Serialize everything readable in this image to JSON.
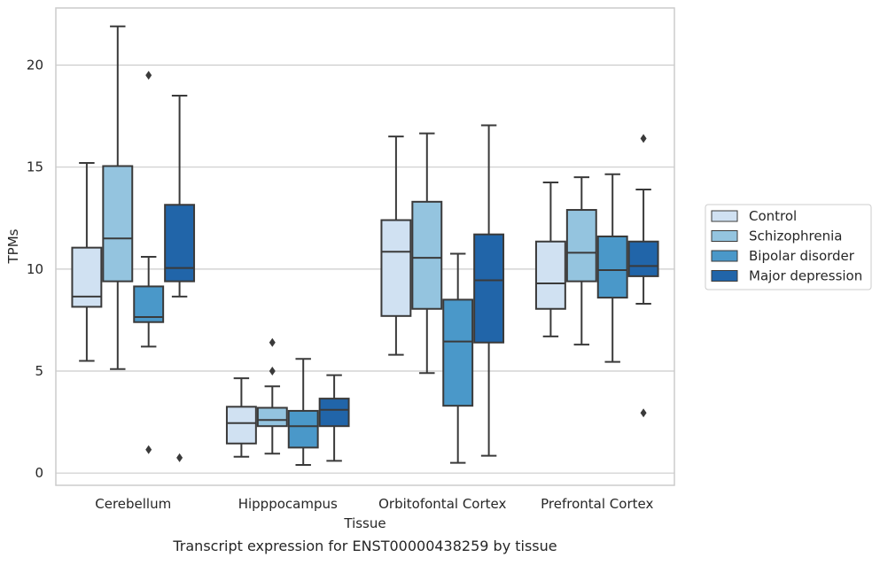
{
  "chart_data": {
    "type": "box",
    "title": "Transcript expression for ENST00000438259 by tissue",
    "xlabel": "Tissue",
    "ylabel": "TPMs",
    "ylim": [
      -0.6,
      22.8
    ],
    "yticks": [
      0,
      5,
      10,
      15,
      20
    ],
    "grid": "horizontal",
    "legend_position": "right",
    "categories": [
      "Cerebellum",
      "Hipppocampus",
      "Orbitofontal Cortex",
      "Prefrontal Cortex"
    ],
    "series": [
      {
        "name": "Control",
        "color": "#d0e1f2",
        "boxes": [
          {
            "whislo": 5.5,
            "q1": 8.15,
            "med": 8.65,
            "q3": 11.05,
            "whishi": 15.2,
            "fliers": []
          },
          {
            "whislo": 0.8,
            "q1": 1.45,
            "med": 2.45,
            "q3": 3.25,
            "whishi": 4.65,
            "fliers": []
          },
          {
            "whislo": 5.8,
            "q1": 7.7,
            "med": 10.85,
            "q3": 12.4,
            "whishi": 16.5,
            "fliers": []
          },
          {
            "whislo": 6.7,
            "q1": 8.05,
            "med": 9.3,
            "q3": 11.35,
            "whishi": 14.25,
            "fliers": []
          }
        ]
      },
      {
        "name": "Schizophrenia",
        "color": "#94c4df",
        "boxes": [
          {
            "whislo": 5.1,
            "q1": 9.4,
            "med": 11.5,
            "q3": 15.05,
            "whishi": 21.9,
            "fliers": []
          },
          {
            "whislo": 0.95,
            "q1": 2.3,
            "med": 2.6,
            "q3": 3.2,
            "whishi": 4.25,
            "fliers": [
              5.0,
              6.4
            ]
          },
          {
            "whislo": 4.9,
            "q1": 8.05,
            "med": 10.55,
            "q3": 13.3,
            "whishi": 16.65,
            "fliers": []
          },
          {
            "whislo": 6.3,
            "q1": 9.4,
            "med": 10.8,
            "q3": 12.9,
            "whishi": 14.5,
            "fliers": []
          }
        ]
      },
      {
        "name": "Bipolar disorder",
        "color": "#4a98c9",
        "boxes": [
          {
            "whislo": 6.2,
            "q1": 7.4,
            "med": 7.65,
            "q3": 9.15,
            "whishi": 10.6,
            "fliers": [
              1.15,
              19.5
            ]
          },
          {
            "whislo": 0.4,
            "q1": 1.25,
            "med": 2.3,
            "q3": 3.05,
            "whishi": 5.6,
            "fliers": []
          },
          {
            "whislo": 0.5,
            "q1": 3.3,
            "med": 6.45,
            "q3": 8.5,
            "whishi": 10.75,
            "fliers": []
          },
          {
            "whislo": 5.45,
            "q1": 8.6,
            "med": 9.95,
            "q3": 11.6,
            "whishi": 14.65,
            "fliers": []
          }
        ]
      },
      {
        "name": "Major depression",
        "color": "#2165a9",
        "boxes": [
          {
            "whislo": 8.65,
            "q1": 9.4,
            "med": 10.05,
            "q3": 13.15,
            "whishi": 18.5,
            "fliers": [
              0.75
            ]
          },
          {
            "whislo": 0.6,
            "q1": 2.3,
            "med": 3.1,
            "q3": 3.65,
            "whishi": 4.8,
            "fliers": []
          },
          {
            "whislo": 0.85,
            "q1": 6.4,
            "med": 9.45,
            "q3": 11.7,
            "whishi": 17.05,
            "fliers": []
          },
          {
            "whislo": 8.3,
            "q1": 9.65,
            "med": 10.15,
            "q3": 11.35,
            "whishi": 13.9,
            "fliers": [
              2.95,
              16.4
            ]
          }
        ]
      }
    ]
  }
}
